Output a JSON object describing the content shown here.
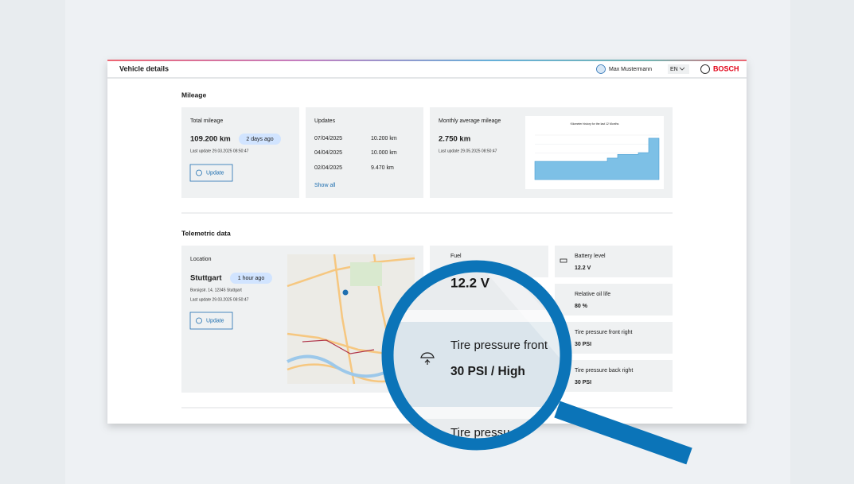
{
  "header": {
    "title": "Vehicle details",
    "user": "Max Mustermann",
    "language": "EN",
    "brand": "BOSCH"
  },
  "mileage": {
    "title": "Mileage",
    "total": {
      "label": "Total mileage",
      "value": "109.200 km",
      "badge": "2 days ago",
      "last_update": "Last update 29.03.2025 08:50:47",
      "button": "Update"
    },
    "updates": {
      "label": "Updates",
      "rows": [
        [
          "07/04/2025",
          "10.200 km"
        ],
        [
          "04/04/2025",
          "10.000 km"
        ],
        [
          "02/04/2025",
          "9.470 km"
        ]
      ],
      "link": "Show all"
    },
    "monthly": {
      "label": "Monthly average mileage",
      "value": "2.750 km",
      "last_update": "Last update 29.05.2025 08:50:47"
    }
  },
  "chart_data": {
    "type": "area",
    "title": "Kilometer history for the last 12 Months",
    "values": [
      1230,
      1230,
      1230,
      1230,
      1230,
      1230,
      1230,
      1450,
      1700,
      1700,
      1820,
      2790
    ],
    "color": "#7dc0e6",
    "ylim": [
      0,
      3000
    ]
  },
  "telemetric": {
    "title": "Telemetric data",
    "location": {
      "label": "Location",
      "city": "Stuttgart",
      "badge": "1 hour ago",
      "address": "Borsigstr. 14, 12345 Stuttgart",
      "last_update": "Last update 29.03.2025 08:50:47",
      "button": "Update"
    },
    "middle_tiles": [
      {
        "label": "Fuel",
        "value": "12.2 V"
      },
      {
        "label": "Tire pressure front",
        "value": "30 PSI / High"
      },
      {
        "label": "Tire pressu"
      }
    ],
    "right_tiles": [
      {
        "label": "Battery level",
        "value": "12.2 V"
      },
      {
        "label": "Relative oil life",
        "value": "80 %"
      },
      {
        "label": "Tire pressure front right",
        "value": "30 PSI"
      },
      {
        "label": "Tire pressure back right",
        "value": "30 PSI"
      }
    ]
  }
}
